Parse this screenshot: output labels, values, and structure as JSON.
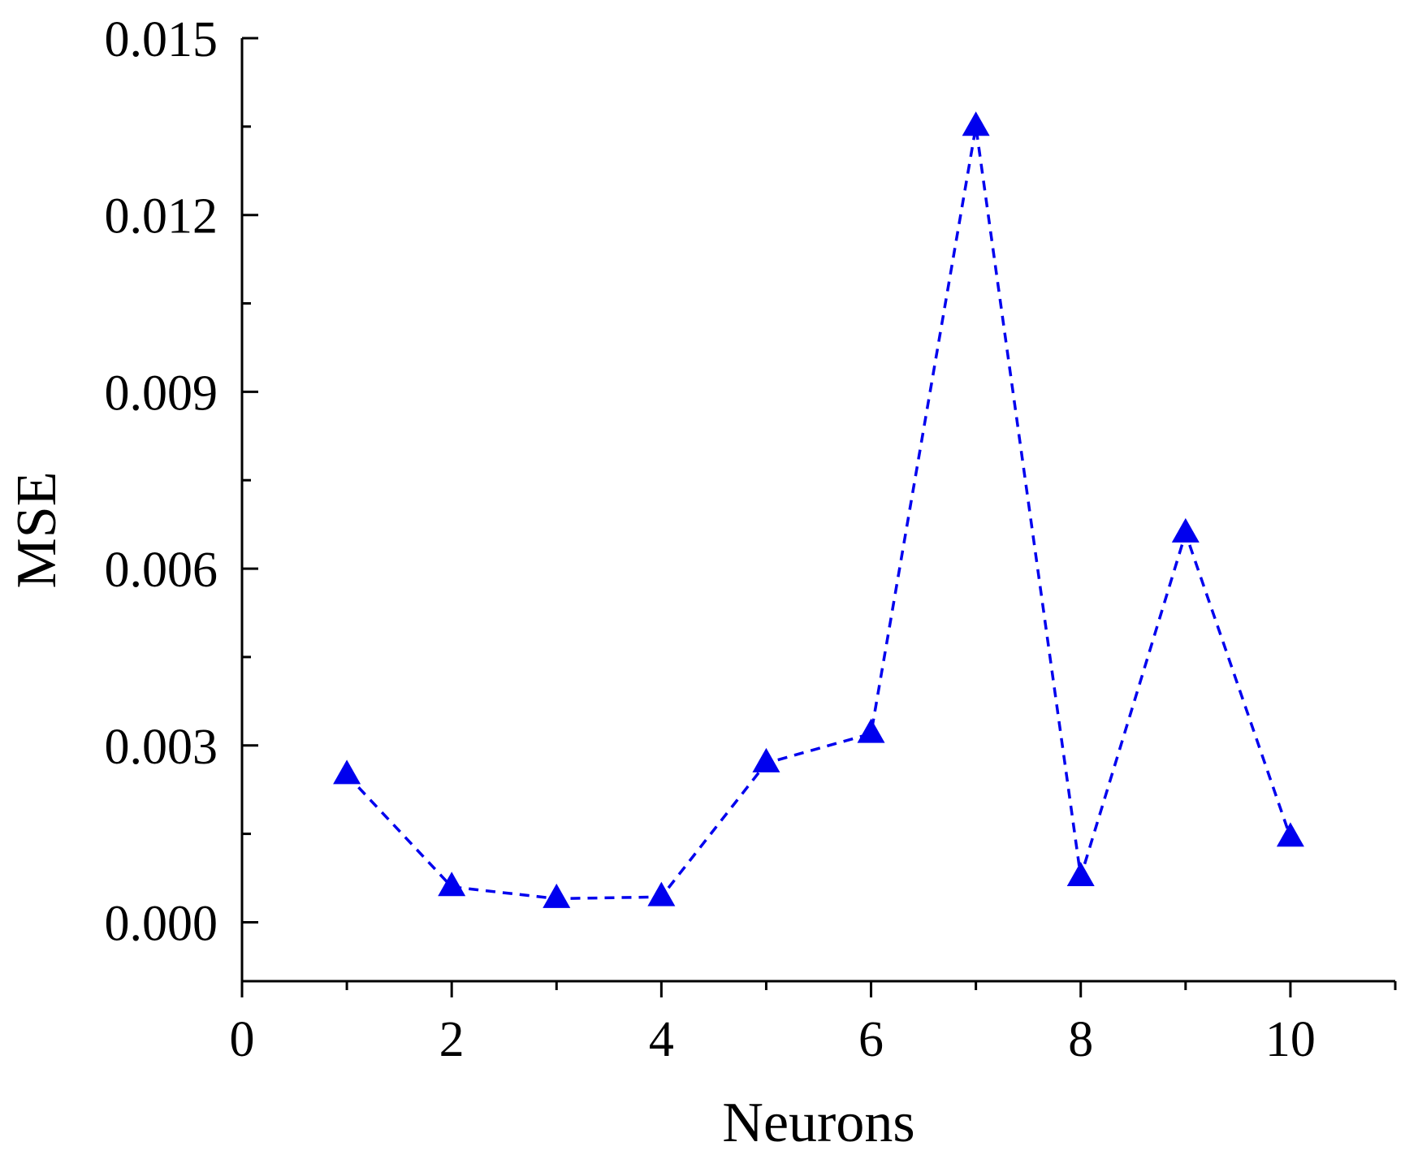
{
  "chart_data": {
    "type": "line",
    "title": "",
    "xlabel": "Neurons",
    "ylabel": "MSE",
    "xlim": [
      0,
      11
    ],
    "ylim": [
      -0.001,
      0.015
    ],
    "x_ticks": [
      0,
      2,
      4,
      6,
      8,
      10
    ],
    "x_tick_labels": [
      "0",
      "2",
      "4",
      "6",
      "8",
      "10"
    ],
    "y_ticks": [
      0.0,
      0.003,
      0.006,
      0.009,
      0.012,
      0.015
    ],
    "y_tick_labels": [
      "0.000",
      "0.003",
      "0.006",
      "0.009",
      "0.012",
      "0.015"
    ],
    "grid": false,
    "series": [
      {
        "x": [
          1,
          2,
          3,
          4,
          5,
          6,
          7,
          8,
          9,
          10
        ],
        "y": [
          0.0025,
          0.0006,
          0.0004,
          0.00043,
          0.0027,
          0.0032,
          0.0135,
          0.00077,
          0.0066,
          0.00144
        ],
        "line_style": "dashed",
        "marker": "triangle",
        "color": "#0000ee"
      }
    ]
  }
}
